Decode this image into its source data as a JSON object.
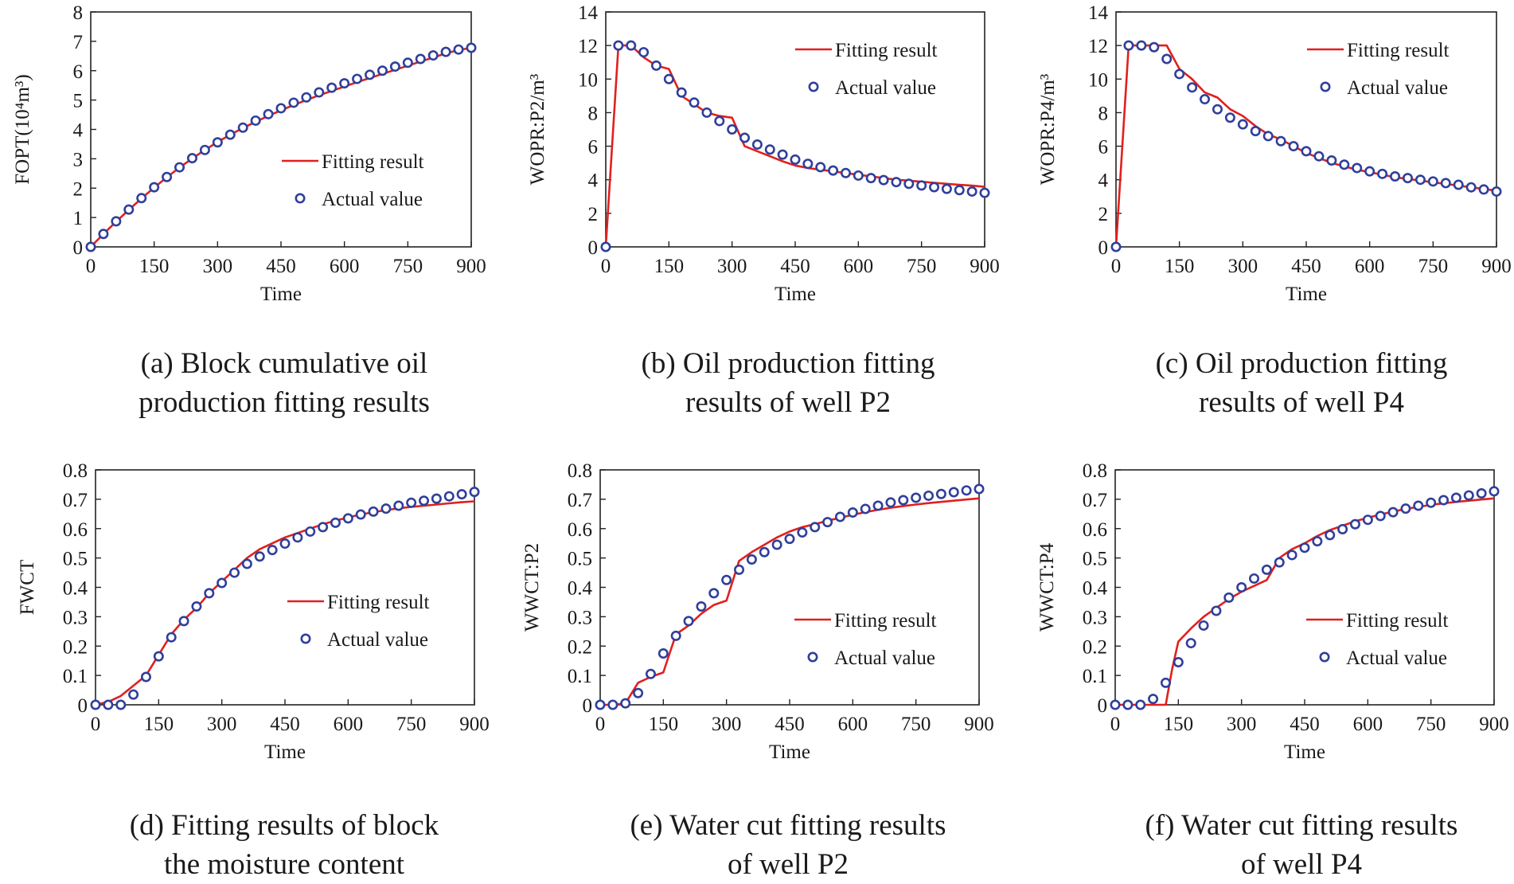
{
  "colors": {
    "fit": "#e0201e",
    "actual": "#2f3f9a",
    "axis": "#222222"
  },
  "legend": {
    "fit": "Fitting result",
    "actual": "Actual value"
  },
  "xlabel": "Time",
  "captions": {
    "a": [
      "(a) Block cumulative oil",
      "production fitting results"
    ],
    "b": [
      "(b) Oil production fitting",
      "results of well P2"
    ],
    "c": [
      "(c) Oil production fitting",
      "results of well P4"
    ],
    "d": [
      "(d) Fitting results of block",
      "the moisture content"
    ],
    "e": [
      "(e) Water cut fitting results",
      "of well P2"
    ],
    "f": [
      "(f) Water cut fitting results",
      "of well P4"
    ]
  },
  "chart_data": [
    {
      "id": "a",
      "type": "line",
      "title": "(a) Block cumulative oil production fitting results",
      "xlabel": "Time",
      "ylabel": "FOPT(10⁴m³)",
      "xlim": [
        0,
        900
      ],
      "ylim": [
        0,
        8
      ],
      "xticks": [
        0,
        150,
        300,
        450,
        600,
        750,
        900
      ],
      "yticks": [
        0,
        1,
        2,
        3,
        4,
        5,
        6,
        7,
        8
      ],
      "legend_position": "center-right",
      "fit": {
        "name": "Fitting result",
        "x": [
          0,
          30,
          60,
          90,
          120,
          150,
          180,
          210,
          240,
          270,
          300,
          330,
          360,
          390,
          420,
          450,
          480,
          510,
          540,
          570,
          600,
          630,
          660,
          690,
          720,
          750,
          780,
          810,
          840,
          870,
          900
        ],
        "y": [
          0,
          0.44,
          0.86,
          1.26,
          1.65,
          2.02,
          2.37,
          2.7,
          3.01,
          3.3,
          3.57,
          3.82,
          4.05,
          4.26,
          4.46,
          4.65,
          4.83,
          5.0,
          5.16,
          5.31,
          5.46,
          5.61,
          5.75,
          5.89,
          6.03,
          6.17,
          6.31,
          6.45,
          6.59,
          6.7,
          6.78
        ]
      },
      "actual": {
        "name": "Actual value",
        "x": [
          0,
          30,
          60,
          90,
          120,
          150,
          180,
          210,
          240,
          270,
          300,
          330,
          360,
          390,
          420,
          450,
          480,
          510,
          540,
          570,
          600,
          630,
          660,
          690,
          720,
          750,
          780,
          810,
          840,
          870,
          900
        ],
        "y": [
          0,
          0.44,
          0.87,
          1.27,
          1.66,
          2.03,
          2.38,
          2.71,
          3.02,
          3.3,
          3.56,
          3.82,
          4.06,
          4.3,
          4.52,
          4.72,
          4.91,
          5.09,
          5.26,
          5.42,
          5.57,
          5.72,
          5.86,
          6.0,
          6.14,
          6.27,
          6.4,
          6.52,
          6.64,
          6.72,
          6.78
        ]
      }
    },
    {
      "id": "b",
      "type": "line",
      "title": "(b) Oil production fitting results of well P2",
      "xlabel": "Time",
      "ylabel": "WOPR:P2/m³",
      "xlim": [
        0,
        900
      ],
      "ylim": [
        0,
        14
      ],
      "xticks": [
        0,
        150,
        300,
        450,
        600,
        750,
        900
      ],
      "yticks": [
        0,
        2,
        4,
        6,
        8,
        10,
        12,
        14
      ],
      "legend_position": "top-right",
      "fit": {
        "name": "Fitting result",
        "x": [
          0,
          30,
          60,
          90,
          120,
          150,
          180,
          210,
          240,
          270,
          300,
          330,
          360,
          390,
          420,
          450,
          480,
          510,
          540,
          570,
          600,
          630,
          660,
          690,
          720,
          750,
          780,
          810,
          840,
          870,
          900
        ],
        "y": [
          0,
          12.0,
          12.0,
          11.3,
          10.8,
          10.6,
          9.0,
          8.5,
          8.0,
          7.8,
          7.7,
          6.0,
          5.7,
          5.4,
          5.1,
          4.85,
          4.7,
          4.6,
          4.5,
          4.4,
          4.3,
          4.2,
          4.1,
          4.0,
          3.95,
          3.88,
          3.82,
          3.76,
          3.7,
          3.65,
          3.58
        ]
      },
      "actual": {
        "name": "Actual value",
        "x": [
          0,
          30,
          60,
          90,
          120,
          150,
          180,
          210,
          240,
          270,
          300,
          330,
          360,
          390,
          420,
          450,
          480,
          510,
          540,
          570,
          600,
          630,
          660,
          690,
          720,
          750,
          780,
          810,
          840,
          870,
          900
        ],
        "y": [
          0,
          12.0,
          12.0,
          11.6,
          10.8,
          10.0,
          9.2,
          8.6,
          8.0,
          7.5,
          7.0,
          6.5,
          6.1,
          5.8,
          5.5,
          5.2,
          4.95,
          4.75,
          4.55,
          4.4,
          4.25,
          4.1,
          3.98,
          3.86,
          3.76,
          3.66,
          3.56,
          3.46,
          3.38,
          3.3,
          3.22
        ]
      }
    },
    {
      "id": "c",
      "type": "line",
      "title": "(c) Oil production fitting results of well P4",
      "xlabel": "Time",
      "ylabel": "WOPR:P4/m³",
      "xlim": [
        0,
        900
      ],
      "ylim": [
        0,
        14
      ],
      "xticks": [
        0,
        150,
        300,
        450,
        600,
        750,
        900
      ],
      "yticks": [
        0,
        2,
        4,
        6,
        8,
        10,
        12,
        14
      ],
      "legend_position": "top-right",
      "fit": {
        "name": "Fitting result",
        "x": [
          0,
          30,
          60,
          90,
          120,
          150,
          180,
          210,
          240,
          270,
          300,
          330,
          360,
          390,
          420,
          450,
          480,
          510,
          540,
          570,
          600,
          630,
          660,
          690,
          720,
          750,
          780,
          810,
          840,
          870,
          900
        ],
        "y": [
          0,
          12.0,
          12.0,
          12.0,
          12.0,
          10.6,
          10.0,
          9.2,
          8.9,
          8.2,
          7.8,
          7.2,
          6.7,
          6.4,
          6.0,
          5.6,
          5.3,
          5.0,
          4.8,
          4.6,
          4.45,
          4.3,
          4.15,
          4.05,
          3.95,
          3.85,
          3.75,
          3.65,
          3.55,
          3.45,
          3.35
        ]
      },
      "actual": {
        "name": "Actual value",
        "x": [
          0,
          30,
          60,
          90,
          120,
          150,
          180,
          210,
          240,
          270,
          300,
          330,
          360,
          390,
          420,
          450,
          480,
          510,
          540,
          570,
          600,
          630,
          660,
          690,
          720,
          750,
          780,
          810,
          840,
          870,
          900
        ],
        "y": [
          0,
          12.0,
          12.0,
          11.9,
          11.2,
          10.3,
          9.5,
          8.8,
          8.2,
          7.7,
          7.3,
          6.9,
          6.6,
          6.3,
          6.0,
          5.7,
          5.4,
          5.15,
          4.9,
          4.7,
          4.5,
          4.35,
          4.2,
          4.1,
          4.0,
          3.9,
          3.8,
          3.7,
          3.55,
          3.42,
          3.3
        ]
      }
    },
    {
      "id": "d",
      "type": "line",
      "title": "(d) Fitting results of block the moisture content",
      "xlabel": "Time",
      "ylabel": "FWCT",
      "xlim": [
        0,
        900
      ],
      "ylim": [
        0,
        0.8
      ],
      "xticks": [
        0,
        150,
        300,
        450,
        600,
        750,
        900
      ],
      "yticks": [
        0,
        0.1,
        0.2,
        0.3,
        0.4,
        0.5,
        0.6,
        0.7,
        0.8
      ],
      "legend_position": "center-right",
      "fit": {
        "name": "Fitting result",
        "x": [
          0,
          30,
          60,
          90,
          120,
          150,
          180,
          210,
          240,
          270,
          300,
          330,
          360,
          390,
          420,
          450,
          480,
          510,
          540,
          570,
          600,
          630,
          660,
          690,
          720,
          750,
          780,
          810,
          840,
          870,
          900
        ],
        "y": [
          0,
          0.01,
          0.03,
          0.065,
          0.1,
          0.17,
          0.24,
          0.29,
          0.33,
          0.38,
          0.42,
          0.46,
          0.5,
          0.53,
          0.55,
          0.57,
          0.585,
          0.6,
          0.615,
          0.627,
          0.638,
          0.648,
          0.656,
          0.663,
          0.669,
          0.674,
          0.678,
          0.682,
          0.686,
          0.69,
          0.693
        ]
      },
      "actual": {
        "name": "Actual value",
        "x": [
          0,
          30,
          60,
          90,
          120,
          150,
          180,
          210,
          240,
          270,
          300,
          330,
          360,
          390,
          420,
          450,
          480,
          510,
          540,
          570,
          600,
          630,
          660,
          690,
          720,
          750,
          780,
          810,
          840,
          870,
          900
        ],
        "y": [
          0,
          0,
          0,
          0.035,
          0.095,
          0.165,
          0.23,
          0.285,
          0.335,
          0.38,
          0.415,
          0.45,
          0.48,
          0.505,
          0.527,
          0.549,
          0.57,
          0.59,
          0.605,
          0.62,
          0.635,
          0.648,
          0.658,
          0.668,
          0.678,
          0.688,
          0.695,
          0.702,
          0.71,
          0.717,
          0.725
        ]
      }
    },
    {
      "id": "e",
      "type": "line",
      "title": "(e) Water cut fitting results of well P2",
      "xlabel": "Time",
      "ylabel": "WWCT:P2",
      "xlim": [
        0,
        900
      ],
      "ylim": [
        0,
        0.8
      ],
      "xticks": [
        0,
        150,
        300,
        450,
        600,
        750,
        900
      ],
      "yticks": [
        0,
        0.1,
        0.2,
        0.3,
        0.4,
        0.5,
        0.6,
        0.7,
        0.8
      ],
      "legend_position": "center-right",
      "fit": {
        "name": "Fitting result",
        "x": [
          0,
          30,
          60,
          90,
          120,
          150,
          180,
          210,
          240,
          270,
          300,
          330,
          360,
          390,
          420,
          450,
          480,
          510,
          540,
          570,
          600,
          630,
          660,
          690,
          720,
          750,
          780,
          810,
          840,
          870,
          900
        ],
        "y": [
          0,
          0,
          0.005,
          0.075,
          0.095,
          0.11,
          0.24,
          0.27,
          0.31,
          0.34,
          0.355,
          0.49,
          0.52,
          0.545,
          0.57,
          0.59,
          0.605,
          0.615,
          0.627,
          0.637,
          0.647,
          0.656,
          0.664,
          0.671,
          0.677,
          0.682,
          0.687,
          0.691,
          0.695,
          0.699,
          0.703
        ]
      },
      "actual": {
        "name": "Actual value",
        "x": [
          0,
          30,
          60,
          90,
          120,
          150,
          180,
          210,
          240,
          270,
          300,
          330,
          360,
          390,
          420,
          450,
          480,
          510,
          540,
          570,
          600,
          630,
          660,
          690,
          720,
          750,
          780,
          810,
          840,
          870,
          900
        ],
        "y": [
          0,
          0,
          0.005,
          0.04,
          0.105,
          0.175,
          0.235,
          0.285,
          0.335,
          0.38,
          0.425,
          0.46,
          0.495,
          0.52,
          0.545,
          0.565,
          0.587,
          0.605,
          0.622,
          0.64,
          0.655,
          0.667,
          0.678,
          0.689,
          0.697,
          0.705,
          0.712,
          0.718,
          0.724,
          0.73,
          0.735
        ]
      }
    },
    {
      "id": "f",
      "type": "line",
      "title": "(f) Water cut fitting results of well P4",
      "xlabel": "Time",
      "ylabel": "WWCT:P4",
      "xlim": [
        0,
        900
      ],
      "ylim": [
        0,
        0.8
      ],
      "xticks": [
        0,
        150,
        300,
        450,
        600,
        750,
        900
      ],
      "yticks": [
        0,
        0.1,
        0.2,
        0.3,
        0.4,
        0.5,
        0.6,
        0.7,
        0.8
      ],
      "legend_position": "center-right",
      "fit": {
        "name": "Fitting result",
        "x": [
          0,
          30,
          60,
          90,
          120,
          135,
          150,
          180,
          210,
          240,
          270,
          300,
          330,
          360,
          390,
          420,
          450,
          480,
          510,
          540,
          570,
          600,
          630,
          660,
          690,
          720,
          750,
          780,
          810,
          840,
          870,
          900
        ],
        "y": [
          0,
          0,
          0,
          0,
          0,
          0.12,
          0.215,
          0.26,
          0.3,
          0.33,
          0.36,
          0.385,
          0.405,
          0.425,
          0.5,
          0.53,
          0.55,
          0.575,
          0.595,
          0.61,
          0.625,
          0.637,
          0.648,
          0.658,
          0.667,
          0.674,
          0.681,
          0.686,
          0.691,
          0.695,
          0.699,
          0.703
        ]
      },
      "actual": {
        "name": "Actual value",
        "x": [
          0,
          30,
          60,
          90,
          120,
          150,
          180,
          210,
          240,
          270,
          300,
          330,
          360,
          390,
          420,
          450,
          480,
          510,
          540,
          570,
          600,
          630,
          660,
          690,
          720,
          750,
          780,
          810,
          840,
          870,
          900
        ],
        "y": [
          0,
          0,
          0,
          0.02,
          0.075,
          0.145,
          0.21,
          0.27,
          0.32,
          0.365,
          0.4,
          0.43,
          0.46,
          0.485,
          0.51,
          0.535,
          0.557,
          0.578,
          0.598,
          0.615,
          0.63,
          0.643,
          0.656,
          0.668,
          0.678,
          0.688,
          0.697,
          0.705,
          0.713,
          0.72,
          0.727
        ]
      }
    }
  ]
}
